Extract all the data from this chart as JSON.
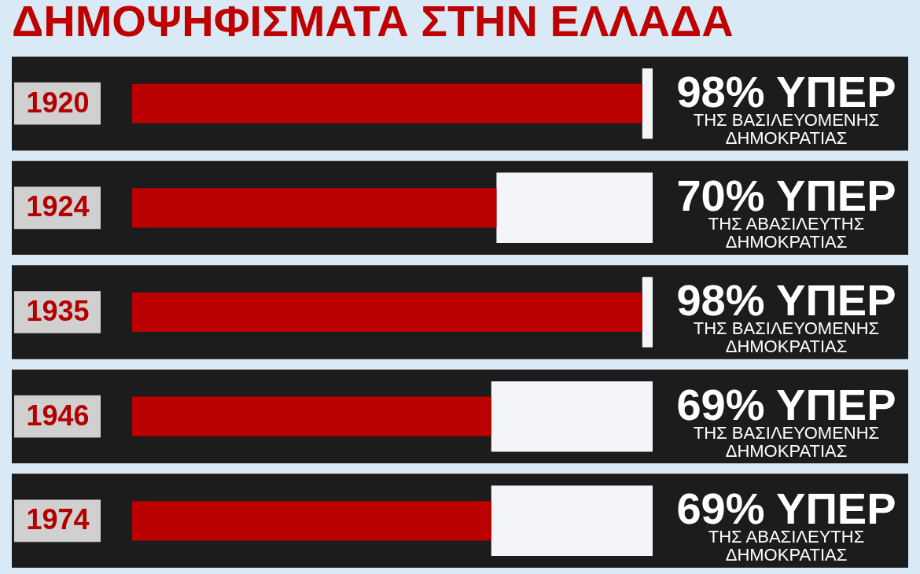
{
  "chart_data": {
    "type": "bar",
    "orientation": "horizontal",
    "stacked": true,
    "title": "ΔΗΜΟΨΗΦΙΣΜΑΤΑ ΣΤΗΝ ΕΛΛΑΔΑ",
    "categories": [
      "1920",
      "1924",
      "1935",
      "1946",
      "1974"
    ],
    "series": [
      {
        "color": "#bb0000",
        "values": [
          98,
          70,
          98,
          69,
          69
        ],
        "value_labels": [
          "98% ΥΠΕΡ",
          "70% ΥΠΕΡ",
          "98% ΥΠΕΡ",
          "69% ΥΠΕΡ",
          "69% ΥΠΕΡ"
        ]
      },
      {
        "color": "#f4f5f8",
        "values": [
          2,
          30,
          2,
          31,
          31
        ]
      }
    ],
    "tick_labels": "y",
    "annotations": [
      "ΤΗΣ ΒΑΣΙΛΕΥΟΜΕΝΗΣ\nΔΗΜΟΚΡΑΤΙΑΣ",
      "ΤΗΣ ΑΒΑΣΙΛΕΥΤΗΣ\nΔΗΜΟΚΡΑΤΙΑΣ",
      "ΤΗΣ ΒΑΣΙΛΕΥΟΜΕΝΗΣ\nΔΗΜΟΚΡΑΤΙΑΣ",
      "ΤΗΣ ΒΑΣΙΛΕΥΟΜΕΝΗΣ\nΔΗΜΟΚΡΑΤΙΑΣ",
      "ΤΗΣ ΑΒΑΣΙΛΕΥΤΗΣ\nΔΗΜΟΚΡΑΤΙΑΣ"
    ]
  }
}
